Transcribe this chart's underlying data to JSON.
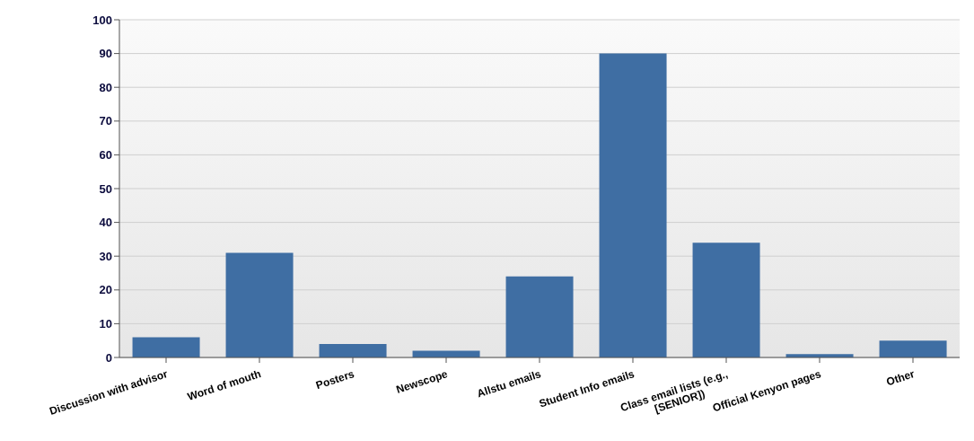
{
  "chart_data": {
    "type": "bar",
    "categories": [
      "Discussion with advisor",
      "Word of mouth",
      "Posters",
      "Newscope",
      "Allstu emails",
      "Student Info emails",
      "Class email lists (e.g., [SENIOR])",
      "Official Kenyon pages",
      "Other"
    ],
    "values": [
      6,
      31,
      4,
      2,
      24,
      90,
      34,
      1,
      5
    ],
    "color": "#3f6ea3",
    "ylim": [
      0,
      100
    ],
    "yticks": [
      0,
      10,
      20,
      30,
      40,
      50,
      60,
      70,
      80,
      90,
      100
    ],
    "grid": "y",
    "legend": false
  }
}
